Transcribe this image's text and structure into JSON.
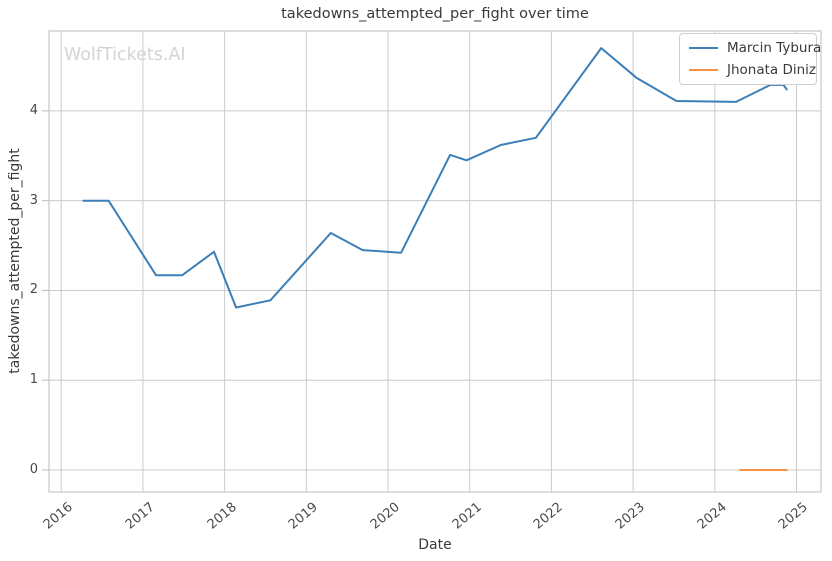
{
  "figure": {
    "title": "takedowns_attempted_per_fight over time",
    "watermark": "WolfTickets.AI"
  },
  "chart_data": {
    "type": "line",
    "title": "takedowns_attempted_per_fight over time",
    "xlabel": "Date",
    "ylabel": "takedowns_attempted_per_fight",
    "xlim": [
      2015.85,
      2025.3
    ],
    "ylim": [
      -0.245,
      4.89
    ],
    "xticks": [
      2016,
      2017,
      2018,
      2019,
      2020,
      2021,
      2022,
      2023,
      2024,
      2025
    ],
    "yticks": [
      0,
      1,
      2,
      3,
      4
    ],
    "grid": true,
    "grid_color": "#cccccc",
    "border_color": "#c9c9c9",
    "legend_position": "upper right",
    "series": [
      {
        "name": "Marcin Tybura",
        "color": "#3b7eb8",
        "x": [
          2016.27,
          2016.58,
          2017.16,
          2017.48,
          2017.87,
          2018.14,
          2018.56,
          2019.3,
          2019.69,
          2020.16,
          2020.76,
          2020.96,
          2021.38,
          2021.81,
          2022.61,
          2023.04,
          2023.53,
          2024.26,
          2024.68,
          2024.84,
          2024.88
        ],
        "y": [
          3.0,
          3.0,
          2.17,
          2.17,
          2.43,
          1.81,
          1.89,
          2.64,
          2.45,
          2.42,
          3.51,
          3.45,
          3.62,
          3.7,
          4.7,
          4.37,
          4.11,
          4.1,
          4.29,
          4.29,
          4.24
        ]
      },
      {
        "name": "Jhonata Diniz",
        "color": "#f89243",
        "x": [
          2024.31,
          2024.88
        ],
        "y": [
          0.0,
          0.0
        ]
      }
    ]
  }
}
